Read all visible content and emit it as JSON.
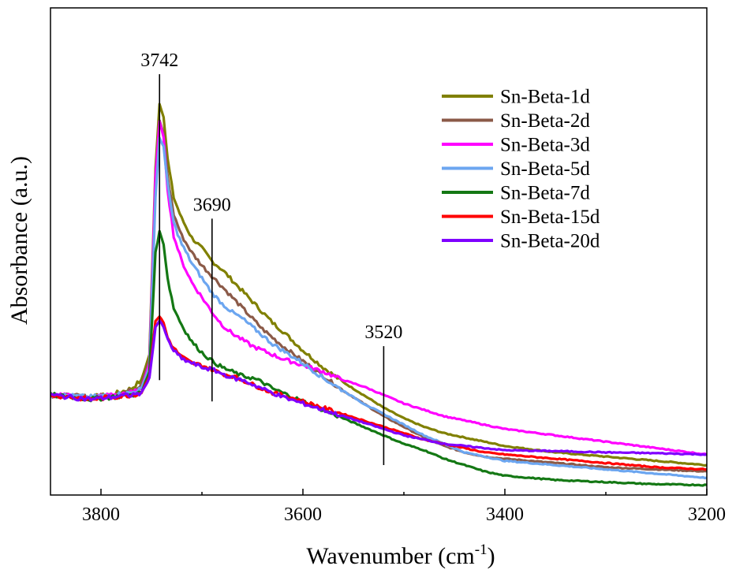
{
  "chart_data": {
    "type": "line",
    "title": "",
    "xlabel": "Wavenumber (cm",
    "xlabel_sup": "-1",
    "xlabel_close": ")",
    "ylabel": "Absorbance (a.u.)",
    "xlim": [
      3850,
      3200
    ],
    "x_reversed": true,
    "ylim": [
      0,
      100
    ],
    "y_ticks_shown": false,
    "legend_position": "top-right",
    "x_ticks": [
      {
        "value": 3800,
        "label": "3800"
      },
      {
        "value": 3600,
        "label": "3600"
      },
      {
        "value": 3400,
        "label": "3400"
      },
      {
        "value": 3200,
        "label": "3200"
      }
    ],
    "x_minor_ticks": [
      3700,
      3500,
      3300
    ],
    "annotations": [
      {
        "x": 3742,
        "label": "3742",
        "y_top": 97,
        "y_bottom": 25
      },
      {
        "x": 3690,
        "label": "3690",
        "y_top": 63,
        "y_bottom": 20
      },
      {
        "x": 3520,
        "label": "3520",
        "y_top": 33,
        "y_bottom": 5
      }
    ],
    "series": [
      {
        "name": "Sn-Beta-1d",
        "color": "#808000",
        "points": [
          [
            3850,
            21.5
          ],
          [
            3810,
            21
          ],
          [
            3790,
            21.5
          ],
          [
            3770,
            23
          ],
          [
            3760,
            25
          ],
          [
            3752,
            31
          ],
          [
            3746,
            75
          ],
          [
            3742,
            90
          ],
          [
            3738,
            87
          ],
          [
            3734,
            77
          ],
          [
            3728,
            68
          ],
          [
            3720,
            63
          ],
          [
            3710,
            58.5
          ],
          [
            3700,
            56
          ],
          [
            3690,
            53
          ],
          [
            3680,
            51
          ],
          [
            3670,
            48.5
          ],
          [
            3660,
            46
          ],
          [
            3650,
            43.5
          ],
          [
            3640,
            41
          ],
          [
            3630,
            38.5
          ],
          [
            3620,
            36.5
          ],
          [
            3600,
            32
          ],
          [
            3580,
            28
          ],
          [
            3560,
            24.5
          ],
          [
            3540,
            21.5
          ],
          [
            3520,
            18.5
          ],
          [
            3500,
            16
          ],
          [
            3480,
            14
          ],
          [
            3460,
            12.5
          ],
          [
            3440,
            11.5
          ],
          [
            3420,
            10.5
          ],
          [
            3400,
            9.5
          ],
          [
            3350,
            8
          ],
          [
            3300,
            7
          ],
          [
            3250,
            6
          ],
          [
            3200,
            5
          ]
        ]
      },
      {
        "name": "Sn-Beta-2d",
        "color": "#8B5A48",
        "points": [
          [
            3850,
            21.5
          ],
          [
            3810,
            21
          ],
          [
            3790,
            21.5
          ],
          [
            3770,
            22.5
          ],
          [
            3760,
            24
          ],
          [
            3752,
            30
          ],
          [
            3746,
            72
          ],
          [
            3742,
            86
          ],
          [
            3738,
            83
          ],
          [
            3734,
            73
          ],
          [
            3728,
            64
          ],
          [
            3720,
            59
          ],
          [
            3710,
            55
          ],
          [
            3700,
            52
          ],
          [
            3690,
            49.5
          ],
          [
            3680,
            47
          ],
          [
            3670,
            44.5
          ],
          [
            3660,
            42
          ],
          [
            3650,
            39.5
          ],
          [
            3640,
            37
          ],
          [
            3630,
            35
          ],
          [
            3620,
            33
          ],
          [
            3600,
            29.5
          ],
          [
            3580,
            26
          ],
          [
            3560,
            22.5
          ],
          [
            3540,
            19.5
          ],
          [
            3520,
            16.5
          ],
          [
            3500,
            14
          ],
          [
            3480,
            11.5
          ],
          [
            3460,
            9.5
          ],
          [
            3440,
            8
          ],
          [
            3420,
            7
          ],
          [
            3400,
            6.5
          ],
          [
            3350,
            5.5
          ],
          [
            3300,
            4.5
          ],
          [
            3250,
            4
          ],
          [
            3200,
            3.5
          ]
        ]
      },
      {
        "name": "Sn-Beta-3d",
        "color": "#FF00FF",
        "points": [
          [
            3850,
            21.5
          ],
          [
            3810,
            21
          ],
          [
            3790,
            21.5
          ],
          [
            3770,
            22
          ],
          [
            3760,
            23
          ],
          [
            3752,
            29
          ],
          [
            3746,
            73
          ],
          [
            3742,
            86
          ],
          [
            3738,
            82
          ],
          [
            3734,
            70
          ],
          [
            3728,
            59
          ],
          [
            3720,
            53
          ],
          [
            3710,
            48
          ],
          [
            3700,
            44.5
          ],
          [
            3690,
            41
          ],
          [
            3680,
            38
          ],
          [
            3670,
            36
          ],
          [
            3660,
            34.5
          ],
          [
            3650,
            33
          ],
          [
            3640,
            32
          ],
          [
            3630,
            31
          ],
          [
            3620,
            30
          ],
          [
            3600,
            28.5
          ],
          [
            3580,
            27
          ],
          [
            3560,
            25
          ],
          [
            3540,
            23.5
          ],
          [
            3520,
            21.5
          ],
          [
            3500,
            19.5
          ],
          [
            3480,
            18
          ],
          [
            3460,
            16.5
          ],
          [
            3440,
            15.5
          ],
          [
            3420,
            14.5
          ],
          [
            3400,
            13.5
          ],
          [
            3350,
            12
          ],
          [
            3300,
            10.5
          ],
          [
            3250,
            9
          ],
          [
            3200,
            7.5
          ]
        ]
      },
      {
        "name": "Sn-Beta-5d",
        "color": "#6CA6F0",
        "points": [
          [
            3850,
            21.5
          ],
          [
            3810,
            21
          ],
          [
            3790,
            21.5
          ],
          [
            3770,
            22
          ],
          [
            3760,
            23
          ],
          [
            3752,
            28
          ],
          [
            3746,
            68
          ],
          [
            3742,
            82
          ],
          [
            3738,
            80
          ],
          [
            3734,
            71
          ],
          [
            3728,
            62
          ],
          [
            3720,
            57
          ],
          [
            3710,
            52.5
          ],
          [
            3700,
            49
          ],
          [
            3690,
            45.5
          ],
          [
            3680,
            43
          ],
          [
            3670,
            41
          ],
          [
            3660,
            39.5
          ],
          [
            3650,
            37.5
          ],
          [
            3640,
            35.5
          ],
          [
            3630,
            33.5
          ],
          [
            3620,
            32
          ],
          [
            3600,
            29
          ],
          [
            3580,
            25.5
          ],
          [
            3560,
            22.5
          ],
          [
            3540,
            19.5
          ],
          [
            3520,
            17
          ],
          [
            3500,
            14.5
          ],
          [
            3480,
            12
          ],
          [
            3460,
            10
          ],
          [
            3440,
            8
          ],
          [
            3420,
            7
          ],
          [
            3400,
            6
          ],
          [
            3350,
            5
          ],
          [
            3300,
            4
          ],
          [
            3250,
            3
          ],
          [
            3200,
            2
          ]
        ]
      },
      {
        "name": "Sn-Beta-7d",
        "color": "#147814",
        "points": [
          [
            3850,
            21.5
          ],
          [
            3810,
            20.5
          ],
          [
            3790,
            21
          ],
          [
            3770,
            21.5
          ],
          [
            3760,
            22
          ],
          [
            3752,
            27
          ],
          [
            3746,
            55
          ],
          [
            3742,
            60
          ],
          [
            3738,
            57
          ],
          [
            3734,
            49
          ],
          [
            3728,
            42
          ],
          [
            3720,
            38
          ],
          [
            3710,
            34
          ],
          [
            3700,
            31.5
          ],
          [
            3690,
            29.5
          ],
          [
            3680,
            28
          ],
          [
            3670,
            27
          ],
          [
            3660,
            26
          ],
          [
            3650,
            25.5
          ],
          [
            3640,
            24.5
          ],
          [
            3630,
            23
          ],
          [
            3620,
            22
          ],
          [
            3600,
            20
          ],
          [
            3580,
            18
          ],
          [
            3560,
            16
          ],
          [
            3540,
            14
          ],
          [
            3520,
            12
          ],
          [
            3500,
            10
          ],
          [
            3480,
            8.5
          ],
          [
            3460,
            6.5
          ],
          [
            3440,
            5
          ],
          [
            3420,
            3.5
          ],
          [
            3400,
            2.5
          ],
          [
            3350,
            1.5
          ],
          [
            3300,
            1
          ],
          [
            3250,
            0.5
          ],
          [
            3200,
            0.3
          ]
        ]
      },
      {
        "name": "Sn-Beta-15d",
        "color": "#FF0000",
        "points": [
          [
            3850,
            21.5
          ],
          [
            3810,
            20.5
          ],
          [
            3790,
            21
          ],
          [
            3770,
            21.5
          ],
          [
            3760,
            22
          ],
          [
            3752,
            26
          ],
          [
            3746,
            39
          ],
          [
            3742,
            40
          ],
          [
            3738,
            38.5
          ],
          [
            3734,
            35
          ],
          [
            3728,
            32.5
          ],
          [
            3720,
            30.5
          ],
          [
            3710,
            29
          ],
          [
            3700,
            28.5
          ],
          [
            3690,
            27.5
          ],
          [
            3680,
            26.5
          ],
          [
            3670,
            26
          ],
          [
            3660,
            25
          ],
          [
            3650,
            24
          ],
          [
            3640,
            23
          ],
          [
            3630,
            22
          ],
          [
            3620,
            21.5
          ],
          [
            3600,
            20
          ],
          [
            3580,
            18.5
          ],
          [
            3560,
            17
          ],
          [
            3540,
            15.5
          ],
          [
            3520,
            14
          ],
          [
            3500,
            12.5
          ],
          [
            3480,
            11
          ],
          [
            3460,
            10
          ],
          [
            3440,
            9
          ],
          [
            3420,
            8
          ],
          [
            3400,
            7.5
          ],
          [
            3350,
            6.5
          ],
          [
            3300,
            5.5
          ],
          [
            3250,
            4.5
          ],
          [
            3200,
            4
          ]
        ]
      },
      {
        "name": "Sn-Beta-20d",
        "color": "#7F00FF",
        "points": [
          [
            3850,
            21.5
          ],
          [
            3810,
            20.5
          ],
          [
            3790,
            21
          ],
          [
            3770,
            21.5
          ],
          [
            3760,
            22
          ],
          [
            3752,
            25.5
          ],
          [
            3746,
            37.5
          ],
          [
            3742,
            39
          ],
          [
            3738,
            37.5
          ],
          [
            3734,
            34.5
          ],
          [
            3728,
            32
          ],
          [
            3720,
            30
          ],
          [
            3710,
            29
          ],
          [
            3700,
            28
          ],
          [
            3690,
            27.5
          ],
          [
            3680,
            26.5
          ],
          [
            3670,
            25.5
          ],
          [
            3660,
            25
          ],
          [
            3650,
            24
          ],
          [
            3640,
            23
          ],
          [
            3630,
            22
          ],
          [
            3620,
            21
          ],
          [
            3600,
            19.5
          ],
          [
            3580,
            18
          ],
          [
            3560,
            16.5
          ],
          [
            3540,
            15
          ],
          [
            3520,
            13.5
          ],
          [
            3500,
            12
          ],
          [
            3480,
            11
          ],
          [
            3460,
            10
          ],
          [
            3440,
            9.5
          ],
          [
            3420,
            9
          ],
          [
            3400,
            8.5
          ],
          [
            3350,
            8.3
          ],
          [
            3300,
            8
          ],
          [
            3250,
            7.8
          ],
          [
            3200,
            7.5
          ]
        ]
      }
    ]
  }
}
